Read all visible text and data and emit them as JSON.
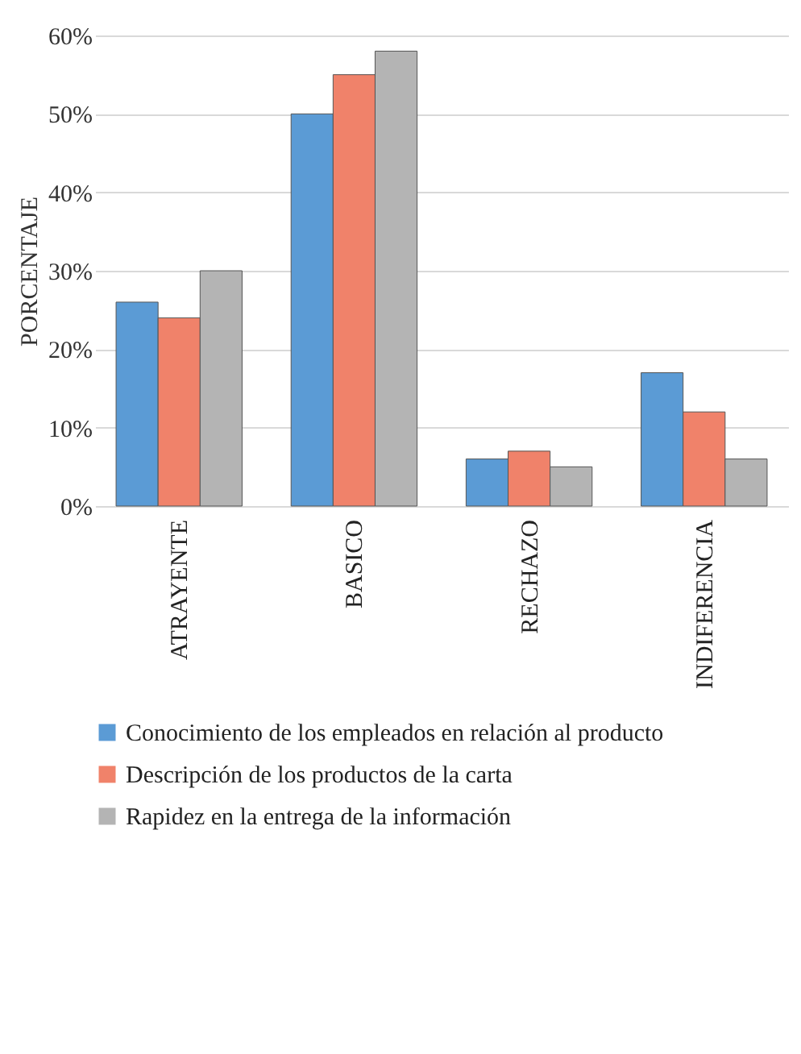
{
  "chart_data": {
    "type": "bar",
    "ylabel": "PORCENTAJE",
    "categories": [
      "ATRAYENTE",
      "BASICO",
      "RECHAZO",
      "INDIFERENCIA"
    ],
    "series": [
      {
        "name": "Conocimiento de los empleados en relación al producto",
        "color": "#5b9bd5",
        "values": [
          26,
          50,
          6,
          17
        ]
      },
      {
        "name": "Descripción de los productos de  la carta",
        "color": "#f0826a",
        "values": [
          24,
          55,
          7,
          12
        ]
      },
      {
        "name": "Rapidez en la entrega de la información",
        "color": "#b4b4b4",
        "values": [
          30,
          58,
          5,
          6
        ]
      }
    ],
    "ylim": [
      0,
      60
    ],
    "yticks": [
      {
        "value": 0,
        "label": "0%"
      },
      {
        "value": 10,
        "label": "10%"
      },
      {
        "value": 20,
        "label": "20%"
      },
      {
        "value": 30,
        "label": "30%"
      },
      {
        "value": 40,
        "label": "40%"
      },
      {
        "value": 50,
        "label": "50%"
      },
      {
        "value": 60,
        "label": "60%"
      }
    ],
    "grid": "y",
    "legend": "bottom"
  }
}
